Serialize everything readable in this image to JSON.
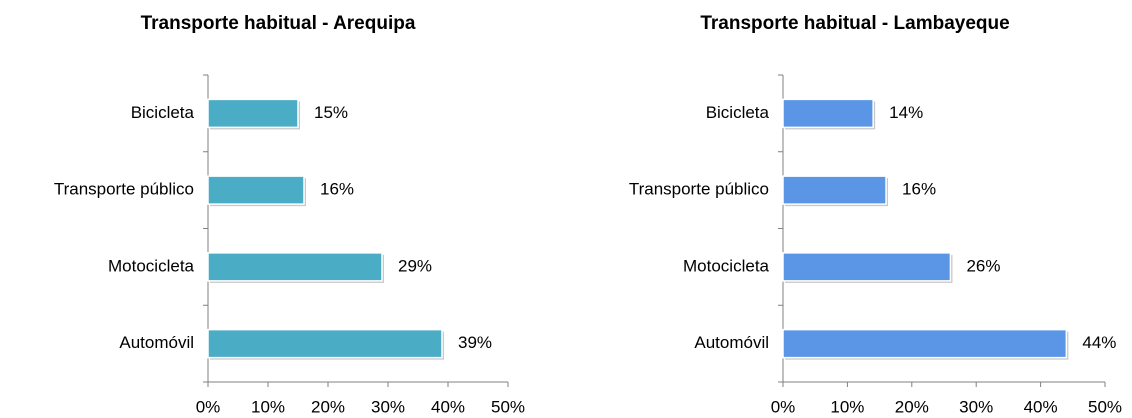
{
  "chart_data": [
    {
      "type": "bar",
      "title": "Transporte habitual - Arequipa",
      "categories": [
        "Bicicleta",
        "Transporte público",
        "Motocicleta",
        "Automóvil"
      ],
      "values": [
        15,
        16,
        29,
        39
      ],
      "value_labels": [
        "15%",
        "16%",
        "29%",
        "39%"
      ],
      "color": "#4bacc6",
      "orientation": "horizontal",
      "xlim": [
        0,
        50
      ],
      "xticks": [
        {
          "value": 0,
          "label": "0%"
        },
        {
          "value": 10,
          "label": "10%"
        },
        {
          "value": 20,
          "label": "20%"
        },
        {
          "value": 30,
          "label": "30%"
        },
        {
          "value": 40,
          "label": "40%"
        },
        {
          "value": 50,
          "label": "50%"
        }
      ]
    },
    {
      "type": "bar",
      "title": "Transporte habitual - Lambayeque",
      "categories": [
        "Bicicleta",
        "Transporte público",
        "Motocicleta",
        "Automóvil"
      ],
      "values": [
        14,
        16,
        26,
        44
      ],
      "value_labels": [
        "14%",
        "16%",
        "26%",
        "44%"
      ],
      "color": "#5a95e6",
      "orientation": "horizontal",
      "xlim": [
        0,
        50
      ],
      "xticks": [
        {
          "value": 0,
          "label": "0%"
        },
        {
          "value": 10,
          "label": "10%"
        },
        {
          "value": 20,
          "label": "20%"
        },
        {
          "value": 30,
          "label": "30%"
        },
        {
          "value": 40,
          "label": "40%"
        },
        {
          "value": 50,
          "label": "50%"
        }
      ]
    }
  ]
}
